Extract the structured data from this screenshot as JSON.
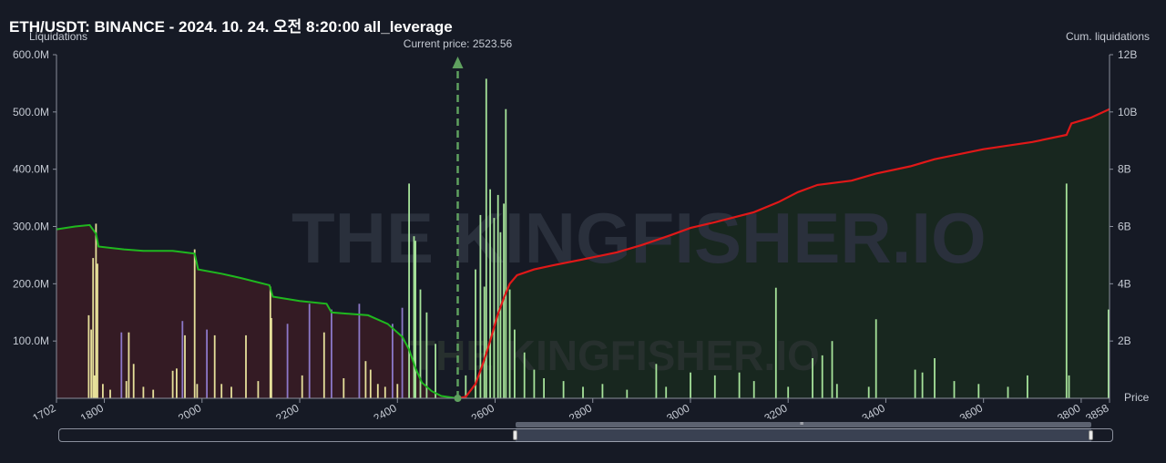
{
  "title": "ETH/USDT: BINANCE - 2024. 10. 24. 오전 8:20:00 all_leverage",
  "left_axis_label": "Liquidations",
  "right_axis_label": "Cum. liquidations",
  "x_axis_label": "Price",
  "current_price_label": "Current price: 2523.56",
  "watermark": "THE KINGFISHER.IO",
  "colors": {
    "background": "#161a25",
    "short_cum_line": "#1fb81f",
    "long_cum_line": "#e01818",
    "short_area": "#3a1c24",
    "long_area": "#18291f",
    "bar_yellow": "#e6e09a",
    "bar_purple": "#8c78c8",
    "bar_green": "#a6e39a",
    "current_price_line": "#5fa05f"
  },
  "chart_data": {
    "type": "bar",
    "x_range": [
      1702,
      3858
    ],
    "x_ticks": [
      "1702",
      "1800",
      "2000",
      "2200",
      "2400",
      "2600",
      "2800",
      "3000",
      "3200",
      "3400",
      "3600",
      "3800",
      "3858"
    ],
    "y_left_label": "Liquidations",
    "y_left_range": [
      0,
      600000000
    ],
    "y_left_ticks": [
      "100.0M",
      "200.0M",
      "300.0M",
      "400.0M",
      "500.0M",
      "600.0M"
    ],
    "y_right_label": "Cum. liquidations",
    "y_right_range": [
      0,
      12000000000
    ],
    "y_right_ticks": [
      "2B",
      "4B",
      "6B",
      "8B",
      "10B",
      "12B"
    ],
    "current_price": 2523.56,
    "bars": [
      [
        1768,
        145000000,
        "yellow"
      ],
      [
        1773,
        120000000,
        "yellow"
      ],
      [
        1777,
        245000000,
        "yellow"
      ],
      [
        1780,
        40000000,
        "yellow"
      ],
      [
        1783,
        305000000,
        "yellow"
      ],
      [
        1786,
        235000000,
        "yellow"
      ],
      [
        1797,
        25000000,
        "yellow"
      ],
      [
        1812,
        15000000,
        "yellow"
      ],
      [
        1835,
        115000000,
        "purple"
      ],
      [
        1845,
        30000000,
        "yellow"
      ],
      [
        1850,
        115000000,
        "yellow"
      ],
      [
        1860,
        60000000,
        "yellow"
      ],
      [
        1880,
        20000000,
        "yellow"
      ],
      [
        1900,
        15000000,
        "yellow"
      ],
      [
        1940,
        48000000,
        "yellow"
      ],
      [
        1948,
        52000000,
        "yellow"
      ],
      [
        1960,
        135000000,
        "purple"
      ],
      [
        1965,
        110000000,
        "yellow"
      ],
      [
        1985,
        260000000,
        "yellow"
      ],
      [
        1990,
        25000000,
        "yellow"
      ],
      [
        2010,
        120000000,
        "purple"
      ],
      [
        2026,
        110000000,
        "yellow"
      ],
      [
        2040,
        25000000,
        "yellow"
      ],
      [
        2060,
        20000000,
        "yellow"
      ],
      [
        2090,
        110000000,
        "yellow"
      ],
      [
        2115,
        30000000,
        "yellow"
      ],
      [
        2140,
        195000000,
        "yellow"
      ],
      [
        2142,
        140000000,
        "yellow"
      ],
      [
        2175,
        130000000,
        "purple"
      ],
      [
        2205,
        40000000,
        "yellow"
      ],
      [
        2220,
        165000000,
        "purple"
      ],
      [
        2250,
        115000000,
        "yellow"
      ],
      [
        2265,
        155000000,
        "purple"
      ],
      [
        2290,
        35000000,
        "yellow"
      ],
      [
        2322,
        165000000,
        "purple"
      ],
      [
        2335,
        65000000,
        "yellow"
      ],
      [
        2345,
        50000000,
        "yellow"
      ],
      [
        2360,
        25000000,
        "yellow"
      ],
      [
        2375,
        20000000,
        "yellow"
      ],
      [
        2390,
        130000000,
        "purple"
      ],
      [
        2400,
        25000000,
        "yellow"
      ],
      [
        2410,
        158000000,
        "purple"
      ],
      [
        2424,
        375000000,
        "green"
      ],
      [
        2434,
        283000000,
        "green"
      ],
      [
        2437,
        275000000,
        "green"
      ],
      [
        2447,
        190000000,
        "green"
      ],
      [
        2460,
        150000000,
        "green"
      ],
      [
        2478,
        95000000,
        "green"
      ],
      [
        2540,
        40000000,
        "green"
      ],
      [
        2560,
        225000000,
        "green"
      ],
      [
        2570,
        320000000,
        "green"
      ],
      [
        2578,
        195000000,
        "green"
      ],
      [
        2582,
        558000000,
        "green"
      ],
      [
        2590,
        365000000,
        "green"
      ],
      [
        2598,
        315000000,
        "green"
      ],
      [
        2606,
        355000000,
        "green"
      ],
      [
        2611,
        290000000,
        "green"
      ],
      [
        2618,
        340000000,
        "green"
      ],
      [
        2622,
        505000000,
        "green"
      ],
      [
        2630,
        190000000,
        "green"
      ],
      [
        2640,
        120000000,
        "green"
      ],
      [
        2660,
        80000000,
        "green"
      ],
      [
        2680,
        50000000,
        "green"
      ],
      [
        2700,
        35000000,
        "green"
      ],
      [
        2740,
        30000000,
        "green"
      ],
      [
        2780,
        20000000,
        "green"
      ],
      [
        2820,
        25000000,
        "green"
      ],
      [
        2870,
        15000000,
        "green"
      ],
      [
        2930,
        60000000,
        "green"
      ],
      [
        2950,
        20000000,
        "green"
      ],
      [
        3000,
        45000000,
        "green"
      ],
      [
        3050,
        40000000,
        "green"
      ],
      [
        3100,
        45000000,
        "green"
      ],
      [
        3130,
        30000000,
        "green"
      ],
      [
        3175,
        193000000,
        "green"
      ],
      [
        3200,
        20000000,
        "green"
      ],
      [
        3250,
        70000000,
        "green"
      ],
      [
        3270,
        75000000,
        "green"
      ],
      [
        3290,
        100000000,
        "green"
      ],
      [
        3300,
        25000000,
        "green"
      ],
      [
        3365,
        20000000,
        "green"
      ],
      [
        3380,
        138000000,
        "green"
      ],
      [
        3460,
        50000000,
        "green"
      ],
      [
        3475,
        45000000,
        "green"
      ],
      [
        3500,
        70000000,
        "green"
      ],
      [
        3540,
        30000000,
        "green"
      ],
      [
        3590,
        25000000,
        "green"
      ],
      [
        3650,
        20000000,
        "green"
      ],
      [
        3690,
        40000000,
        "green"
      ],
      [
        3770,
        375000000,
        "green"
      ],
      [
        3775,
        40000000,
        "green"
      ],
      [
        3856,
        155000000,
        "green"
      ]
    ],
    "short_cum_line": [
      [
        1702,
        5900000000.0
      ],
      [
        1740,
        6000000000.0
      ],
      [
        1770,
        6050000000.0
      ],
      [
        1783,
        5750000000.0
      ],
      [
        1788,
        5300000000.0
      ],
      [
        1840,
        5200000000.0
      ],
      [
        1880,
        5150000000.0
      ],
      [
        1940,
        5150000000.0
      ],
      [
        1985,
        5050000000.0
      ],
      [
        1992,
        4500000000.0
      ],
      [
        2040,
        4350000000.0
      ],
      [
        2080,
        4200000000.0
      ],
      [
        2138,
        3950000000.0
      ],
      [
        2145,
        3550000000.0
      ],
      [
        2200,
        3400000000.0
      ],
      [
        2255,
        3300000000.0
      ],
      [
        2265,
        3000000000.0
      ],
      [
        2340,
        2900000000.0
      ],
      [
        2380,
        2600000000.0
      ],
      [
        2410,
        2150000000.0
      ],
      [
        2424,
        1700000000.0
      ],
      [
        2437,
        1050000000.0
      ],
      [
        2450,
        550000000.0
      ],
      [
        2470,
        250000000.0
      ],
      [
        2490,
        80000000.0
      ],
      [
        2523,
        0.0
      ]
    ],
    "long_cum_line": [
      [
        2523,
        0.0
      ],
      [
        2540,
        50000000.0
      ],
      [
        2560,
        500000000.0
      ],
      [
        2575,
        1200000000.0
      ],
      [
        2590,
        2000000000.0
      ],
      [
        2605,
        2900000000.0
      ],
      [
        2618,
        3500000000.0
      ],
      [
        2630,
        4000000000.0
      ],
      [
        2645,
        4300000000.0
      ],
      [
        2680,
        4500000000.0
      ],
      [
        2720,
        4650000000.0
      ],
      [
        2780,
        4850000000.0
      ],
      [
        2850,
        5100000000.0
      ],
      [
        2900,
        5350000000.0
      ],
      [
        2960,
        5700000000.0
      ],
      [
        3000,
        5950000000.0
      ],
      [
        3050,
        6150000000.0
      ],
      [
        3130,
        6500000000.0
      ],
      [
        3180,
        6850000000.0
      ],
      [
        3220,
        7200000000.0
      ],
      [
        3260,
        7450000000.0
      ],
      [
        3330,
        7600000000.0
      ],
      [
        3380,
        7850000000.0
      ],
      [
        3450,
        8100000000.0
      ],
      [
        3500,
        8350000000.0
      ],
      [
        3600,
        8700000000.0
      ],
      [
        3700,
        8950000000.0
      ],
      [
        3770,
        9200000000.0
      ],
      [
        3780,
        9600000000.0
      ],
      [
        3820,
        9800000000.0
      ],
      [
        3858,
        10100000000.0
      ]
    ]
  }
}
